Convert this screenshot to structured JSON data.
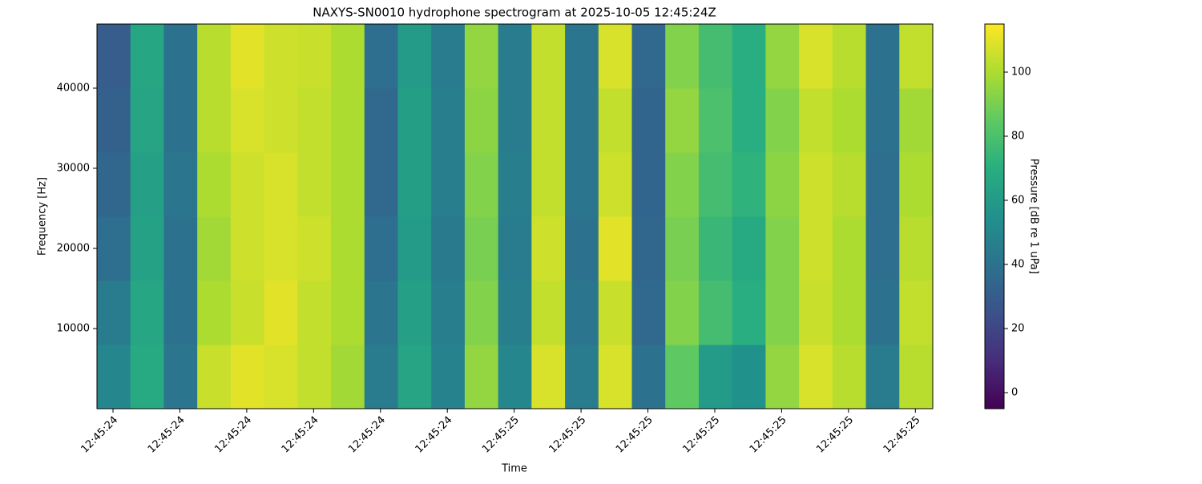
{
  "chart_data": {
    "type": "heatmap",
    "title": "NAXYS-SN0010 hydrophone spectrogram at 2025-10-05 12:45:24Z",
    "xlabel": "Time",
    "ylabel": "Frequency [Hz]",
    "colorbar_label": "Pressure [dB re 1 uPa]",
    "colormap": "viridis",
    "x": [
      0.376,
      0.426,
      0.476,
      0.526,
      0.576,
      0.626,
      0.676,
      0.726,
      0.776,
      0.826,
      0.876,
      0.926,
      0.976,
      1.026,
      1.076,
      1.126,
      1.176,
      1.226,
      1.276,
      1.326,
      1.376,
      1.426,
      1.476,
      1.526,
      1.576,
      1.626
    ],
    "y": [
      0,
      8000,
      16000,
      24000,
      32000,
      40000,
      48000
    ],
    "values": [
      [
        50,
        68,
        42,
        105,
        110,
        108,
        104,
        98,
        45,
        65,
        48,
        95,
        50,
        108,
        45,
        108,
        40,
        85,
        60,
        55,
        95,
        108,
        102,
        45,
        102
      ],
      [
        45,
        66,
        40,
        100,
        105,
        110,
        104,
        100,
        42,
        63,
        46,
        92,
        46,
        104,
        42,
        105,
        36,
        92,
        78,
        70,
        92,
        105,
        100,
        40,
        104
      ],
      [
        38,
        64,
        40,
        98,
        106,
        108,
        106,
        100,
        38,
        60,
        44,
        90,
        45,
        106,
        40,
        110,
        35,
        90,
        75,
        68,
        92,
        106,
        100,
        38,
        102
      ],
      [
        35,
        63,
        42,
        100,
        106,
        108,
        104,
        100,
        36,
        62,
        46,
        92,
        46,
        104,
        42,
        106,
        34,
        92,
        78,
        72,
        94,
        106,
        102,
        38,
        100
      ],
      [
        32,
        65,
        40,
        102,
        108,
        106,
        104,
        100,
        36,
        62,
        46,
        94,
        45,
        104,
        42,
        104,
        34,
        95,
        80,
        70,
        92,
        104,
        100,
        40,
        98
      ],
      [
        30,
        66,
        40,
        102,
        110,
        106,
        105,
        100,
        38,
        60,
        45,
        95,
        45,
        104,
        42,
        108,
        36,
        92,
        78,
        70,
        95,
        108,
        102,
        40,
        104
      ]
    ],
    "xlim": [
      0.376,
      1.626
    ],
    "xticks": [
      {
        "value": 0.4,
        "label": "12:45:24"
      },
      {
        "value": 0.5,
        "label": "12:45:24"
      },
      {
        "value": 0.6,
        "label": "12:45:24"
      },
      {
        "value": 0.7,
        "label": "12:45:24"
      },
      {
        "value": 0.8,
        "label": "12:45:24"
      },
      {
        "value": 0.9,
        "label": "12:45:24"
      },
      {
        "value": 1.0,
        "label": "12:45:25"
      },
      {
        "value": 1.1,
        "label": "12:45:25"
      },
      {
        "value": 1.2,
        "label": "12:45:25"
      },
      {
        "value": 1.3,
        "label": "12:45:25"
      },
      {
        "value": 1.4,
        "label": "12:45:25"
      },
      {
        "value": 1.5,
        "label": "12:45:25"
      },
      {
        "value": 1.6,
        "label": "12:45:25"
      }
    ],
    "ylim": [
      0,
      48000
    ],
    "yticks": [
      10000,
      20000,
      30000,
      40000
    ],
    "zlim": [
      -5,
      115
    ],
    "zticks": [
      0,
      20,
      40,
      60,
      80,
      100
    ]
  }
}
